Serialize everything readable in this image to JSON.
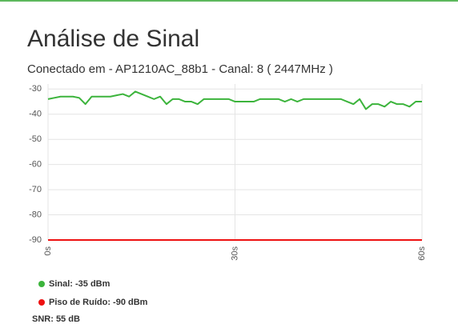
{
  "header": {
    "title": "Análise de Sinal",
    "subtitle": "Conectado em - AP1210AC_88b1 - Canal: 8 ( 2447MHz )"
  },
  "chart_data": {
    "type": "line",
    "x": [
      0,
      1,
      2,
      3,
      4,
      5,
      6,
      7,
      8,
      9,
      10,
      11,
      12,
      13,
      14,
      15,
      16,
      17,
      18,
      19,
      20,
      21,
      22,
      23,
      24,
      25,
      26,
      27,
      28,
      29,
      30,
      31,
      32,
      33,
      34,
      35,
      36,
      37,
      38,
      39,
      40,
      41,
      42,
      43,
      44,
      45,
      46,
      47,
      48,
      49,
      50,
      51,
      52,
      53,
      54,
      55,
      56,
      57,
      58,
      59,
      60
    ],
    "series": [
      {
        "name": "Sinal: -35 dBm",
        "color": "#3cb43c",
        "values": [
          -34,
          -33.5,
          -33,
          -33,
          -33,
          -33.5,
          -36,
          -33,
          -33,
          -33,
          -33,
          -32.5,
          -32,
          -33,
          -31,
          -32,
          -33,
          -34,
          -33,
          -36,
          -34,
          -34,
          -35,
          -35,
          -36,
          -34,
          -34,
          -34,
          -34,
          -34,
          -35,
          -35,
          -35,
          -35,
          -34,
          -34,
          -34,
          -34,
          -35,
          -34,
          -35,
          -34,
          -34,
          -34,
          -34,
          -34,
          -34,
          -34,
          -35,
          -36,
          -34,
          -38,
          -36,
          -36,
          -37,
          -35,
          -36,
          -36,
          -37,
          -35,
          -35
        ]
      },
      {
        "name": "Piso de Ruído: -90 dBm",
        "color": "#ee1111",
        "values": [
          -90,
          -90,
          -90,
          -90,
          -90,
          -90,
          -90,
          -90,
          -90,
          -90,
          -90,
          -90,
          -90,
          -90,
          -90,
          -90,
          -90,
          -90,
          -90,
          -90,
          -90,
          -90,
          -90,
          -90,
          -90,
          -90,
          -90,
          -90,
          -90,
          -90,
          -90,
          -90,
          -90,
          -90,
          -90,
          -90,
          -90,
          -90,
          -90,
          -90,
          -90,
          -90,
          -90,
          -90,
          -90,
          -90,
          -90,
          -90,
          -90,
          -90,
          -90,
          -90,
          -90,
          -90,
          -90,
          -90,
          -90,
          -90,
          -90,
          -90,
          -90
        ]
      }
    ],
    "xlim": [
      0,
      60
    ],
    "xticks": [
      {
        "value": 0,
        "label": "0s"
      },
      {
        "value": 30,
        "label": "30s"
      },
      {
        "value": 60,
        "label": "60s"
      }
    ],
    "ylim": [
      -90,
      -28
    ],
    "yticks": [
      -30,
      -40,
      -50,
      -60,
      -70,
      -80,
      -90
    ],
    "grid": true
  },
  "snr": "SNR: 55 dB"
}
